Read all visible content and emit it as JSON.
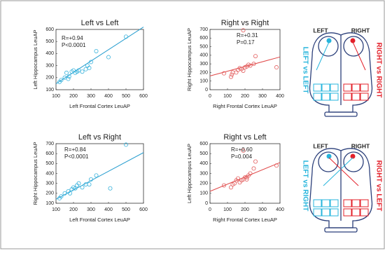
{
  "chart_data": [
    {
      "type": "scatter",
      "title": "Left vs Left",
      "x_label": "Left Frontal Cortex LeuAP",
      "y_label": "Left Hippocampus LeuAP",
      "annotations": [
        "R=+0.94",
        "P<0.0001"
      ],
      "color": "#3ab3dc",
      "line_color": "#2a9fd0",
      "x": [
        120,
        130,
        150,
        160,
        170,
        175,
        190,
        200,
        210,
        220,
        230,
        250,
        270,
        280,
        290,
        300,
        330,
        400,
        500
      ],
      "values": [
        165,
        180,
        200,
        240,
        190,
        210,
        250,
        260,
        240,
        250,
        260,
        250,
        270,
        300,
        280,
        330,
        420,
        370,
        540
      ],
      "fit": {
        "x": [
          100,
          600
        ],
        "y": [
          150,
          620
        ]
      },
      "xlim": [
        100,
        600
      ],
      "xticks": [
        100,
        200,
        300,
        400,
        500,
        600
      ],
      "ylim": [
        100,
        600
      ],
      "yticks": [
        100,
        200,
        300,
        400,
        500,
        600
      ]
    },
    {
      "type": "scatter",
      "title": "Right vs Right",
      "x_label": "Right Frontal Cortex LeuAP",
      "y_label": "Right Hippocampus LeuAP",
      "annotations": [
        "R=+0.31",
        "P=0.17"
      ],
      "color": "#e36060",
      "line_color": "#e04848",
      "x": [
        80,
        120,
        125,
        130,
        150,
        160,
        170,
        180,
        190,
        200,
        210,
        220,
        230,
        250,
        260,
        190,
        380
      ],
      "values": [
        190,
        150,
        175,
        200,
        200,
        230,
        250,
        240,
        220,
        260,
        270,
        290,
        280,
        300,
        390,
        690,
        260
      ],
      "fit": {
        "x": [
          0,
          400
        ],
        "y": [
          160,
          380
        ]
      },
      "xlim": [
        0,
        400
      ],
      "xticks": [
        0,
        100,
        200,
        300,
        400
      ],
      "ylim": [
        0,
        700
      ],
      "yticks": [
        0,
        100,
        200,
        300,
        400,
        500,
        600,
        700
      ]
    },
    {
      "type": "scatter",
      "title": "Left vs Right",
      "x_label": "Left Frontal Cortex LeuAP",
      "y_label": "Right Hippocampus LeuAP",
      "annotations": [
        "R=+0.84",
        "P<0.0001"
      ],
      "color": "#3ab3dc",
      "line_color": "#2a9fd0",
      "x": [
        120,
        130,
        150,
        170,
        180,
        190,
        200,
        210,
        220,
        230,
        250,
        270,
        290,
        300,
        330,
        410,
        500
      ],
      "values": [
        150,
        170,
        200,
        220,
        200,
        240,
        260,
        250,
        280,
        300,
        260,
        290,
        290,
        340,
        380,
        250,
        690
      ],
      "fit": {
        "x": [
          100,
          600
        ],
        "y": [
          140,
          610
        ]
      },
      "xlim": [
        100,
        600
      ],
      "xticks": [
        100,
        200,
        300,
        400,
        500,
        600
      ],
      "ylim": [
        100,
        700
      ],
      "yticks": [
        100,
        200,
        300,
        400,
        500,
        600,
        700
      ]
    },
    {
      "type": "scatter",
      "title": "Right vs Left",
      "x_label": "Right Frontal Cortex LeuAP",
      "y_label": "Left Hippocampus LeuAP",
      "annotations": [
        "R=+0.60",
        "P=0.004"
      ],
      "color": "#e36060",
      "line_color": "#e04848",
      "x": [
        80,
        120,
        130,
        140,
        150,
        160,
        170,
        180,
        190,
        200,
        210,
        220,
        230,
        250,
        260,
        190,
        380,
        210
      ],
      "values": [
        180,
        160,
        190,
        200,
        230,
        250,
        210,
        230,
        240,
        260,
        260,
        280,
        300,
        350,
        420,
        530,
        380,
        240
      ],
      "fit": {
        "x": [
          0,
          400
        ],
        "y": [
          120,
          410
        ]
      },
      "xlim": [
        0,
        400
      ],
      "xticks": [
        0,
        100,
        200,
        300,
        400
      ],
      "ylim": [
        0,
        600
      ],
      "yticks": [
        0,
        100,
        200,
        300,
        400,
        500,
        600
      ]
    }
  ],
  "diagrams": [
    {
      "left": "LEFT",
      "right": "RIGHT",
      "left_side": "LEFT vs LEFT",
      "right_side": "RIGHT vs RIGHT"
    },
    {
      "left": "LEFT",
      "right": "RIGHT",
      "left_side": "LEFT vs RIGHT",
      "right_side": "RIGHT vs LEFT"
    }
  ]
}
